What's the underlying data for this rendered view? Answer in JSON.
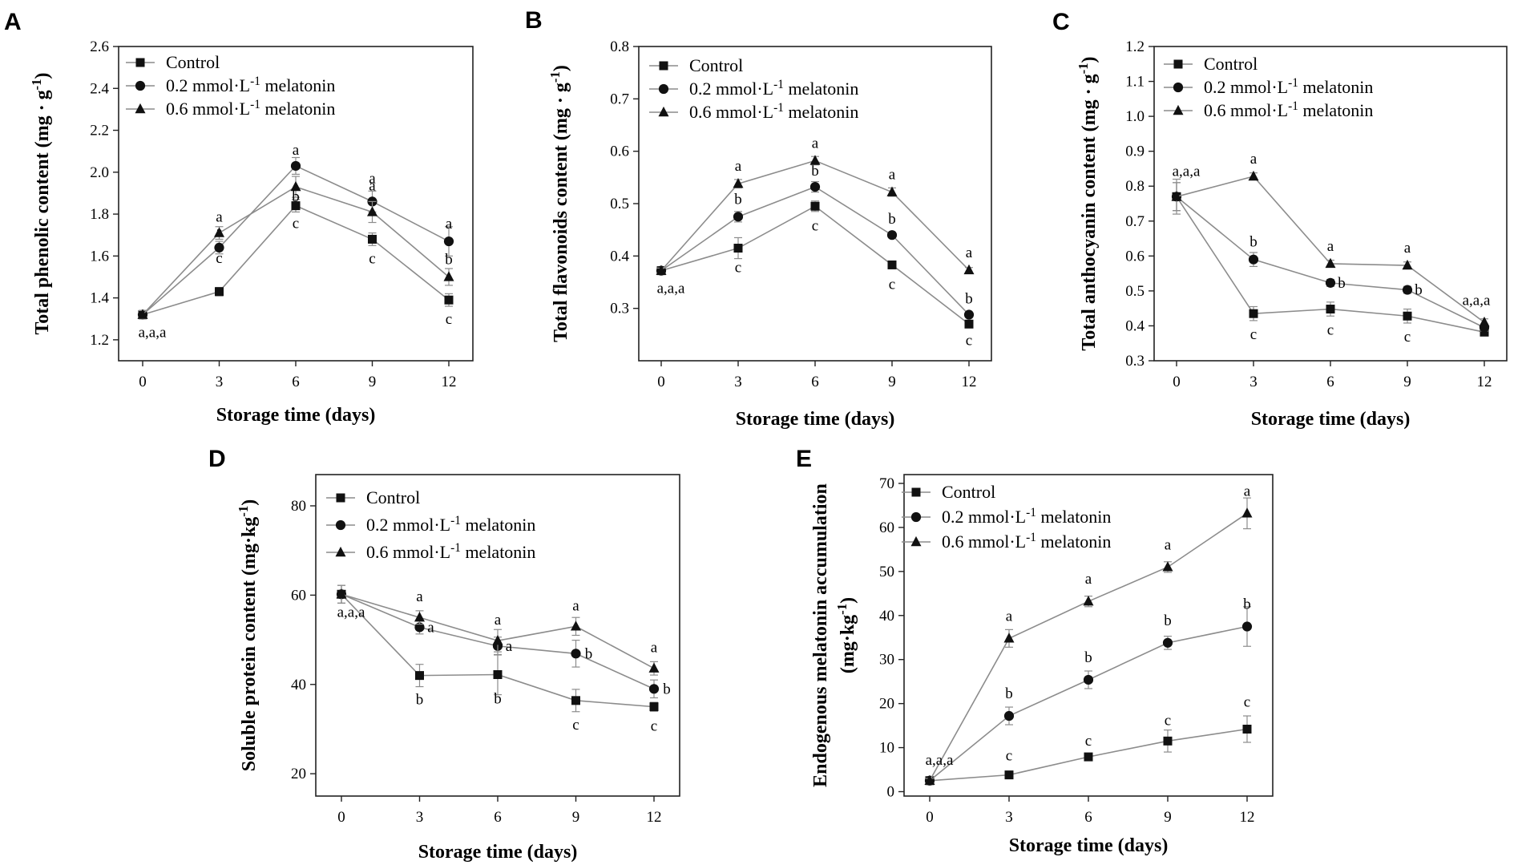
{
  "figure": {
    "colors": {
      "line": "#8c8c8c",
      "marker": "#111111",
      "axis": "#222222",
      "background": "#ffffff"
    }
  },
  "chart_data": [
    {
      "id": "A",
      "panel_label": "A",
      "type": "line",
      "xlabel": "Storage time (days)",
      "ylabel": "Total phenolic content (mg · g-1)",
      "x": [
        0,
        3,
        6,
        9,
        12
      ],
      "x_ticks": [
        "0",
        "3",
        "6",
        "9",
        "12"
      ],
      "ylim": [
        1.1,
        2.6
      ],
      "y_ticks": [
        "1.2",
        "1.4",
        "1.6",
        "1.8",
        "2.0",
        "2.2",
        "2.4",
        "2.6"
      ],
      "series": [
        {
          "name": "Control",
          "marker": "square",
          "values": [
            1.32,
            1.43,
            1.84,
            1.68,
            1.39
          ],
          "errors": [
            0.02,
            0.02,
            0.03,
            0.03,
            0.03
          ],
          "labels": [
            "",
            "c",
            "c",
            "c",
            "c"
          ]
        },
        {
          "name": "0.2 mmol·L-1 melatonin",
          "marker": "circle",
          "values": [
            1.32,
            1.64,
            2.03,
            1.86,
            1.67
          ],
          "errors": [
            0.02,
            0.03,
            0.04,
            0.05,
            0.07
          ],
          "labels": [
            "",
            "a",
            "a",
            "a",
            "a"
          ]
        },
        {
          "name": "0.6 mmol·L-1 melatonin",
          "marker": "triangle",
          "values": [
            1.32,
            1.71,
            1.93,
            1.81,
            1.5
          ],
          "errors": [
            0.02,
            0.03,
            0.05,
            0.05,
            0.04
          ],
          "labels": [
            "",
            "a",
            "b",
            "a",
            "b"
          ]
        }
      ],
      "annotations": [
        {
          "x": 0,
          "text": "a,a,a"
        }
      ]
    },
    {
      "id": "B",
      "panel_label": "B",
      "type": "line",
      "xlabel": "Storage time (days)",
      "ylabel": "Total flavonoids content (mg · g-1)",
      "x": [
        0,
        3,
        6,
        9,
        12
      ],
      "x_ticks": [
        "0",
        "3",
        "6",
        "9",
        "12"
      ],
      "ylim": [
        0.2,
        0.8
      ],
      "y_ticks": [
        "0.3",
        "0.4",
        "0.5",
        "0.6",
        "0.7",
        "0.8"
      ],
      "series": [
        {
          "name": "Control",
          "marker": "square",
          "values": [
            0.372,
            0.415,
            0.495,
            0.383,
            0.27
          ],
          "errors": [
            0.005,
            0.02,
            0.01,
            0.005,
            0.005
          ],
          "labels": [
            "",
            "c",
            "c",
            "c",
            "c"
          ]
        },
        {
          "name": "0.2 mmol·L-1 melatonin",
          "marker": "circle",
          "values": [
            0.372,
            0.475,
            0.532,
            0.44,
            0.288
          ],
          "errors": [
            0.005,
            0.01,
            0.01,
            0.005,
            0.005
          ],
          "labels": [
            "",
            "b",
            "b",
            "b",
            "b"
          ]
        },
        {
          "name": "0.6 mmol·L-1 melatonin",
          "marker": "triangle",
          "values": [
            0.372,
            0.538,
            0.582,
            0.522,
            0.373
          ],
          "errors": [
            0.005,
            0.008,
            0.008,
            0.008,
            0.005
          ],
          "labels": [
            "",
            "a",
            "a",
            "a",
            "a"
          ]
        }
      ],
      "annotations": [
        {
          "x": 0,
          "text": "a,a,a"
        }
      ]
    },
    {
      "id": "C",
      "panel_label": "C",
      "type": "line",
      "xlabel": "Storage time (days)",
      "ylabel": "Total anthocyanin content (mg · g-1)",
      "x": [
        0,
        3,
        6,
        9,
        12
      ],
      "x_ticks": [
        "0",
        "3",
        "6",
        "9",
        "12"
      ],
      "ylim": [
        0.3,
        1.2
      ],
      "y_ticks": [
        "0.3",
        "0.4",
        "0.5",
        "0.6",
        "0.7",
        "0.8",
        "0.9",
        "1.0",
        "1.1",
        "1.2"
      ],
      "series": [
        {
          "name": "Control",
          "marker": "square",
          "values": [
            0.77,
            0.435,
            0.448,
            0.428,
            0.382
          ],
          "errors": [
            0.05,
            0.02,
            0.02,
            0.02,
            0.01
          ],
          "labels": [
            "",
            "c",
            "c",
            "c",
            "a,a,a"
          ]
        },
        {
          "name": "0.2 mmol·L-1 melatonin",
          "marker": "circle",
          "values": [
            0.77,
            0.59,
            0.523,
            0.503,
            0.395
          ],
          "errors": [
            0.04,
            0.02,
            0.01,
            0.01,
            0.01
          ],
          "labels": [
            "",
            "b",
            "b",
            "b",
            ""
          ]
        },
        {
          "name": "0.6 mmol·L-1 melatonin",
          "marker": "triangle",
          "values": [
            0.77,
            0.828,
            0.578,
            0.573,
            0.41
          ],
          "errors": [
            0.04,
            0.01,
            0.01,
            0.01,
            0.01
          ],
          "labels": [
            "",
            "a",
            "a",
            "a",
            ""
          ]
        }
      ],
      "annotations": [
        {
          "x": 0,
          "text": "a,a,a"
        }
      ]
    },
    {
      "id": "D",
      "panel_label": "D",
      "type": "line",
      "xlabel": "Storage time (days)",
      "ylabel": "Soluble protein content (mg·kg-1)",
      "x": [
        0,
        3,
        6,
        9,
        12
      ],
      "x_ticks": [
        "0",
        "3",
        "6",
        "9",
        "12"
      ],
      "ylim": [
        15,
        87
      ],
      "y_ticks": [
        "20",
        "40",
        "60",
        "80"
      ],
      "series": [
        {
          "name": "Control",
          "marker": "square",
          "values": [
            60.2,
            42.0,
            42.2,
            36.4,
            35.0
          ],
          "errors": [
            2.0,
            2.5,
            4.5,
            2.5,
            1.0
          ],
          "labels": [
            "",
            "b",
            "b",
            "c",
            "c"
          ]
        },
        {
          "name": "0.2 mmol·L-1 melatonin",
          "marker": "circle",
          "values": [
            60.2,
            52.8,
            48.6,
            46.9,
            39.0
          ],
          "errors": [
            2.0,
            1.5,
            2.0,
            3.0,
            2.0
          ],
          "labels": [
            "",
            "a",
            "a",
            "b",
            "b"
          ]
        },
        {
          "name": "0.6 mmol·L-1 melatonin",
          "marker": "triangle",
          "values": [
            60.2,
            55.0,
            49.8,
            53.0,
            43.6
          ],
          "errors": [
            2.0,
            1.5,
            2.5,
            2.0,
            1.5
          ],
          "labels": [
            "",
            "a",
            "a",
            "a",
            "a"
          ]
        }
      ],
      "annotations": [
        {
          "x": 0,
          "text": "a,a,a"
        }
      ]
    },
    {
      "id": "E",
      "panel_label": "E",
      "type": "line",
      "xlabel": "Storage time (days)",
      "ylabel": "Endogenous melatonin accumulation (mg·kg-1)",
      "x": [
        0,
        3,
        6,
        9,
        12
      ],
      "x_ticks": [
        "0",
        "3",
        "6",
        "9",
        "12"
      ],
      "ylim": [
        -1,
        72
      ],
      "y_ticks": [
        "0",
        "10",
        "20",
        "30",
        "40",
        "50",
        "60",
        "70"
      ],
      "series": [
        {
          "name": "Control",
          "marker": "square",
          "values": [
            2.5,
            3.8,
            7.9,
            11.5,
            14.2
          ],
          "errors": [
            0.5,
            0.8,
            0.8,
            2.5,
            3.0
          ],
          "labels": [
            "",
            "c",
            "c",
            "c",
            "c"
          ]
        },
        {
          "name": "0.2 mmol·L-1 melatonin",
          "marker": "circle",
          "values": [
            2.5,
            17.2,
            25.4,
            33.8,
            37.5
          ],
          "errors": [
            0.5,
            2.0,
            2.0,
            1.5,
            4.5
          ],
          "labels": [
            "",
            "b",
            "b",
            "b",
            "b"
          ]
        },
        {
          "name": "0.6 mmol·L-1 melatonin",
          "marker": "triangle",
          "values": [
            2.5,
            34.8,
            43.2,
            51.0,
            63.2
          ],
          "errors": [
            0.5,
            2.0,
            1.2,
            1.2,
            3.5
          ],
          "labels": [
            "",
            "a",
            "a",
            "a",
            "a"
          ]
        }
      ],
      "annotations": [
        {
          "x": 0,
          "text": "a,a,a"
        }
      ]
    }
  ]
}
